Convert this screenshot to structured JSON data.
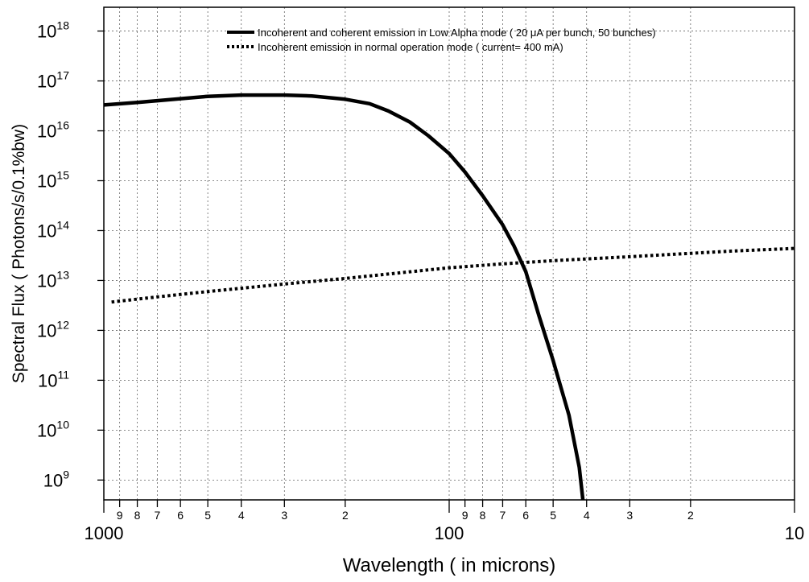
{
  "chart_data": {
    "type": "line",
    "title": "",
    "xlabel": "Wavelength ( in microns)",
    "ylabel": "Spectral Flux ( Photons/s/0.1%bw)",
    "x_scale": "log",
    "x_reversed": true,
    "x_range": [
      1000,
      10
    ],
    "y_scale": "log",
    "y_range": [
      400000000.0,
      3e+18
    ],
    "grid": true,
    "legend_position": "top-right",
    "x_major_ticks": [
      {
        "value": 1000,
        "label": "1000"
      },
      {
        "value": 100,
        "label": "100"
      },
      {
        "value": 10,
        "label": "10"
      }
    ],
    "x_minor_ticks": [
      {
        "value": 900,
        "label": "9"
      },
      {
        "value": 800,
        "label": "8"
      },
      {
        "value": 700,
        "label": "7"
      },
      {
        "value": 600,
        "label": "6"
      },
      {
        "value": 500,
        "label": "5"
      },
      {
        "value": 400,
        "label": "4"
      },
      {
        "value": 300,
        "label": "3"
      },
      {
        "value": 200,
        "label": "2"
      },
      {
        "value": 90,
        "label": "9"
      },
      {
        "value": 80,
        "label": "8"
      },
      {
        "value": 70,
        "label": "7"
      },
      {
        "value": 60,
        "label": "6"
      },
      {
        "value": 50,
        "label": "5"
      },
      {
        "value": 40,
        "label": "4"
      },
      {
        "value": 30,
        "label": "3"
      },
      {
        "value": 20,
        "label": "2"
      }
    ],
    "y_ticks": [
      {
        "exp": 9,
        "base": "10",
        "sup": "9"
      },
      {
        "exp": 10,
        "base": "10",
        "sup": "10"
      },
      {
        "exp": 11,
        "base": "10",
        "sup": "11"
      },
      {
        "exp": 12,
        "base": "10",
        "sup": "12"
      },
      {
        "exp": 13,
        "base": "10",
        "sup": "13"
      },
      {
        "exp": 14,
        "base": "10",
        "sup": "14"
      },
      {
        "exp": 15,
        "base": "10",
        "sup": "15"
      },
      {
        "exp": 16,
        "base": "10",
        "sup": "16"
      },
      {
        "exp": 17,
        "base": "10",
        "sup": "17"
      },
      {
        "exp": 18,
        "base": "10",
        "sup": "18"
      }
    ],
    "series": [
      {
        "name": "Incoherent and coherent emission in Low Alpha mode ( 20 μA per bunch, 50 bunches)",
        "style": "solid",
        "color": "#000000",
        "points": [
          [
            1000,
            3.3e+16
          ],
          [
            800,
            3.7e+16
          ],
          [
            600,
            4.4e+16
          ],
          [
            500,
            4.9e+16
          ],
          [
            400,
            5.2e+16
          ],
          [
            300,
            5.2e+16
          ],
          [
            250,
            5e+16
          ],
          [
            200,
            4.3e+16
          ],
          [
            170,
            3.5e+16
          ],
          [
            150,
            2.5e+16
          ],
          [
            130,
            1.5e+16
          ],
          [
            115,
            8000000000000000.0
          ],
          [
            100,
            3500000000000000.0
          ],
          [
            90,
            1500000000000000.0
          ],
          [
            80,
            500000000000000.0
          ],
          [
            70,
            130000000000000.0
          ],
          [
            65,
            50000000000000.0
          ],
          [
            60,
            15000000000000.0
          ],
          [
            55,
            2000000000000.0
          ],
          [
            50,
            250000000000.0
          ],
          [
            45,
            20000000000.0
          ],
          [
            42,
            1800000000.0
          ],
          [
            41,
            400000000.0
          ]
        ]
      },
      {
        "name": "Incoherent emission in normal operation mode ( current= 400 mA)",
        "style": "dotted",
        "color": "#000000",
        "points": [
          [
            950,
            3700000000000.0
          ],
          [
            700,
            4700000000000.0
          ],
          [
            500,
            6000000000000.0
          ],
          [
            300,
            8500000000000.0
          ],
          [
            200,
            11000000000000.0
          ],
          [
            150,
            13500000000000.0
          ],
          [
            100,
            18000000000000.0
          ],
          [
            70,
            21500000000000.0
          ],
          [
            50,
            25000000000000.0
          ],
          [
            30,
            30000000000000.0
          ],
          [
            20,
            35000000000000.0
          ],
          [
            15,
            39000000000000.0
          ],
          [
            10,
            44000000000000.0
          ]
        ]
      }
    ]
  }
}
